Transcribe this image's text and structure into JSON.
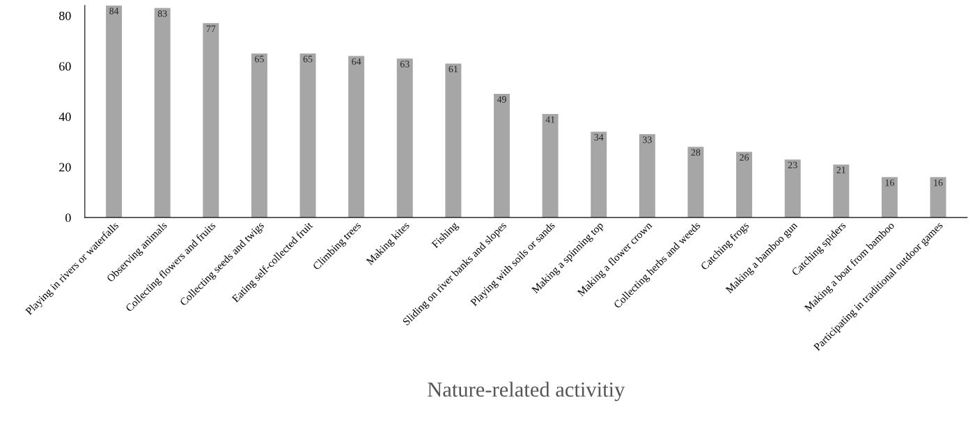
{
  "chart_data": {
    "type": "bar",
    "xlabel": "Nature-related activitiy",
    "categories": [
      "Playing in rivers or waterfalls",
      "Observing animals",
      "Collecting flowers and fruits",
      "Collecting seeds and twigs",
      "Eating self-collected fruit",
      "Climbing trees",
      "Making kites",
      "Fishing",
      "Sliding on river banks and slopes",
      "Playing with soils or sands",
      "Making a spinning top",
      "Making a flower crown",
      "Collecting herbs and weeds",
      "Catching frogs",
      "Making a bamboo gun",
      "Catching spiders",
      "Making a boat from bamboo",
      "Participating in traditional outdoor games"
    ],
    "values": [
      84,
      83,
      77,
      65,
      65,
      64,
      63,
      61,
      49,
      41,
      34,
      33,
      28,
      26,
      23,
      21,
      16,
      16
    ],
    "color": "#a6a6a6",
    "data_labels": true,
    "ylim": [
      0,
      84
    ],
    "yticks": [
      0,
      20,
      40,
      60,
      80
    ],
    "grid": false,
    "legend": false
  }
}
